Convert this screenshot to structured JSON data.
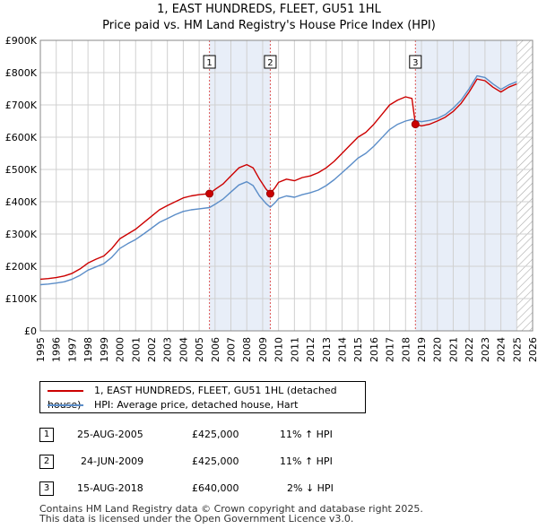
{
  "header": {
    "title_line1": "1, EAST HUNDREDS, FLEET, GU51 1HL",
    "title_line2": "Price paid vs. HM Land Registry's House Price Index (HPI)"
  },
  "colors": {
    "price_line": "#cc0000",
    "hpi_line": "#5b8dc8",
    "shade": "#e8eef8",
    "grid": "#d0d0d0"
  },
  "legend": {
    "items": [
      {
        "label": "1, EAST HUNDREDS, FLEET, GU51 1HL (detached house)"
      },
      {
        "label": "HPI: Average price, detached house, Hart"
      }
    ]
  },
  "transactions": [
    {
      "num": "1",
      "date": "25-AUG-2005",
      "price": "£425,000",
      "hpi": "11% ↑ HPI"
    },
    {
      "num": "2",
      "date": "24-JUN-2009",
      "price": "£425,000",
      "hpi": "11% ↑ HPI"
    },
    {
      "num": "3",
      "date": "15-AUG-2018",
      "price": "£640,000",
      "hpi": "2% ↓ HPI"
    }
  ],
  "footer": {
    "line1": "Contains HM Land Registry data © Crown copyright and database right 2025.",
    "line2": "This data is licensed under the Open Government Licence v3.0."
  },
  "chart_data": {
    "type": "line",
    "title": "1, EAST HUNDREDS, FLEET, GU51 1HL",
    "subtitle": "Price paid vs. HM Land Registry's House Price Index (HPI)",
    "xlim": [
      1995,
      2026
    ],
    "ylim": [
      0,
      900000
    ],
    "x_ticks": [
      1995,
      1996,
      1997,
      1998,
      1999,
      2000,
      2001,
      2002,
      2003,
      2004,
      2005,
      2006,
      2007,
      2008,
      2009,
      2010,
      2011,
      2012,
      2013,
      2014,
      2015,
      2016,
      2017,
      2018,
      2019,
      2020,
      2021,
      2022,
      2023,
      2024,
      2025,
      2026
    ],
    "y_ticks": [
      0,
      100000,
      200000,
      300000,
      400000,
      500000,
      600000,
      700000,
      800000,
      900000
    ],
    "y_tick_labels": [
      "£0",
      "£100K",
      "£200K",
      "£300K",
      "£400K",
      "£500K",
      "£600K",
      "£700K",
      "£800K",
      "£900K"
    ],
    "shaded_ranges": [
      [
        2005.65,
        2009.48
      ],
      [
        2018.62,
        2025.0
      ]
    ],
    "hatched_range": [
      2025.0,
      2026.0
    ],
    "event_lines": [
      {
        "label": "1",
        "x": 2005.65
      },
      {
        "label": "2",
        "x": 2009.48
      },
      {
        "label": "3",
        "x": 2018.62
      }
    ],
    "sale_points": [
      {
        "x": 2005.65,
        "y": 425000
      },
      {
        "x": 2009.48,
        "y": 425000
      },
      {
        "x": 2018.62,
        "y": 640000
      }
    ],
    "series": [
      {
        "name": "1, EAST HUNDREDS, FLEET, GU51 1HL (detached house)",
        "x": [
          1995.0,
          1995.5,
          1996.0,
          1996.5,
          1997.0,
          1997.5,
          1998.0,
          1998.5,
          1999.0,
          1999.5,
          2000.0,
          2000.5,
          2001.0,
          2001.5,
          2002.0,
          2002.5,
          2003.0,
          2003.5,
          2004.0,
          2004.5,
          2005.0,
          2005.65,
          2006.0,
          2006.5,
          2007.0,
          2007.5,
          2008.0,
          2008.4,
          2008.8,
          2009.2,
          2009.48,
          2009.8,
          2010.0,
          2010.5,
          2011.0,
          2011.5,
          2012.0,
          2012.5,
          2013.0,
          2013.5,
          2014.0,
          2014.5,
          2015.0,
          2015.5,
          2016.0,
          2016.5,
          2017.0,
          2017.5,
          2018.0,
          2018.4,
          2018.62,
          2019.0,
          2019.5,
          2020.0,
          2020.5,
          2021.0,
          2021.5,
          2022.0,
          2022.5,
          2023.0,
          2023.5,
          2024.0,
          2024.5,
          2025.0
        ],
        "values": [
          160000,
          162000,
          165000,
          170000,
          178000,
          192000,
          210000,
          222000,
          232000,
          255000,
          285000,
          300000,
          315000,
          335000,
          355000,
          375000,
          388000,
          400000,
          412000,
          418000,
          422000,
          425000,
          438000,
          455000,
          480000,
          505000,
          515000,
          505000,
          470000,
          440000,
          425000,
          445000,
          460000,
          470000,
          465000,
          475000,
          480000,
          490000,
          505000,
          525000,
          550000,
          575000,
          600000,
          615000,
          640000,
          670000,
          700000,
          715000,
          725000,
          720000,
          640000,
          635000,
          640000,
          650000,
          662000,
          680000,
          705000,
          740000,
          780000,
          775000,
          755000,
          740000,
          755000,
          765000
        ]
      },
      {
        "name": "HPI: Average price, detached house, Hart",
        "x": [
          1995.0,
          1995.5,
          1996.0,
          1996.5,
          1997.0,
          1997.5,
          1998.0,
          1998.5,
          1999.0,
          1999.5,
          2000.0,
          2000.5,
          2001.0,
          2001.5,
          2002.0,
          2002.5,
          2003.0,
          2003.5,
          2004.0,
          2004.5,
          2005.0,
          2005.65,
          2006.0,
          2006.5,
          2007.0,
          2007.5,
          2008.0,
          2008.4,
          2008.8,
          2009.2,
          2009.48,
          2009.8,
          2010.0,
          2010.5,
          2011.0,
          2011.5,
          2012.0,
          2012.5,
          2013.0,
          2013.5,
          2014.0,
          2014.5,
          2015.0,
          2015.5,
          2016.0,
          2016.5,
          2017.0,
          2017.5,
          2018.0,
          2018.4,
          2018.62,
          2019.0,
          2019.5,
          2020.0,
          2020.5,
          2021.0,
          2021.5,
          2022.0,
          2022.5,
          2023.0,
          2023.5,
          2024.0,
          2024.5,
          2025.0
        ],
        "values": [
          143000,
          145000,
          148000,
          152000,
          160000,
          172000,
          188000,
          198000,
          208000,
          228000,
          255000,
          270000,
          283000,
          300000,
          318000,
          336000,
          348000,
          360000,
          370000,
          375000,
          378000,
          382000,
          392000,
          408000,
          430000,
          452000,
          462000,
          450000,
          418000,
          395000,
          383000,
          398000,
          410000,
          418000,
          414000,
          422000,
          428000,
          436000,
          450000,
          468000,
          490000,
          512000,
          535000,
          550000,
          572000,
          598000,
          624000,
          640000,
          650000,
          655000,
          652000,
          648000,
          652000,
          658000,
          670000,
          690000,
          715000,
          750000,
          790000,
          785000,
          765000,
          748000,
          762000,
          772000
        ]
      }
    ]
  }
}
